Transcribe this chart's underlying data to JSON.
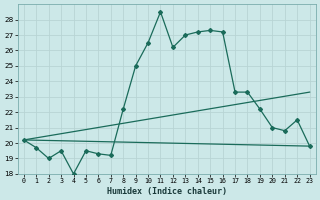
{
  "xlabel": "Humidex (Indice chaleur)",
  "xlim": [
    -0.5,
    23.5
  ],
  "ylim": [
    18,
    29
  ],
  "yticks": [
    18,
    19,
    20,
    21,
    22,
    23,
    24,
    25,
    26,
    27,
    28
  ],
  "xticks": [
    0,
    1,
    2,
    3,
    4,
    5,
    6,
    7,
    8,
    9,
    10,
    11,
    12,
    13,
    14,
    15,
    16,
    17,
    18,
    19,
    20,
    21,
    22,
    23
  ],
  "background_color": "#cce8e8",
  "grid_color": "#b8d4d4",
  "line_color": "#1a6b5a",
  "line1_x": [
    0,
    1,
    2,
    3,
    4,
    5,
    6,
    7,
    8,
    9,
    10,
    11,
    12,
    13,
    14,
    15,
    16,
    17,
    18,
    19,
    20,
    21,
    22,
    23
  ],
  "line1_y": [
    20.2,
    19.7,
    19.0,
    19.5,
    18.0,
    19.5,
    19.3,
    19.2,
    22.2,
    25.0,
    26.5,
    28.5,
    26.2,
    27.0,
    27.2,
    27.3,
    27.2,
    23.3,
    23.3,
    22.2,
    21.0,
    20.8,
    21.5,
    19.8
  ],
  "line2_x": [
    0,
    23
  ],
  "line2_y": [
    20.2,
    19.8
  ],
  "line3_x": [
    0,
    23
  ],
  "line3_y": [
    20.2,
    23.3
  ],
  "markersize": 2.0,
  "linewidth": 0.9
}
